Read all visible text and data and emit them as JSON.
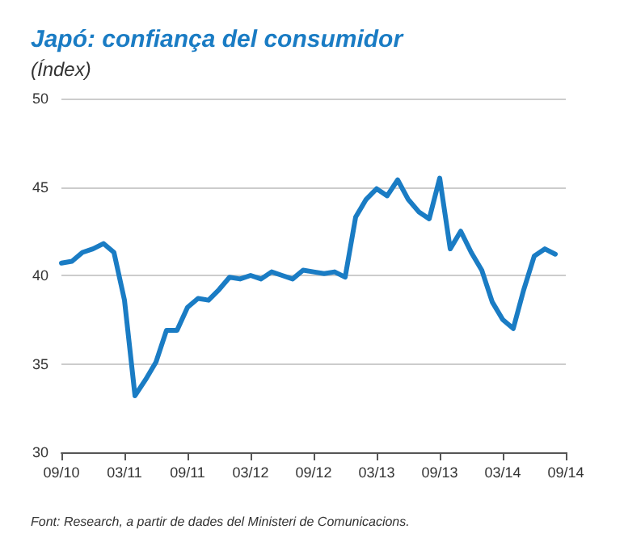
{
  "chart_data": {
    "type": "line",
    "title": "Japó: confiança del consumidor",
    "subtitle": "(Índex)",
    "annotations": [
      "Font: Research, a partir de dades del Ministeri de Comunicacions."
    ],
    "categories": [
      "09/10",
      null,
      null,
      null,
      null,
      null,
      "03/11",
      null,
      null,
      null,
      null,
      null,
      "09/11",
      null,
      null,
      null,
      null,
      null,
      "03/12",
      null,
      null,
      null,
      null,
      null,
      "09/12",
      null,
      null,
      null,
      null,
      null,
      "03/13",
      null,
      null,
      null,
      null,
      null,
      "09/13",
      null,
      null,
      null,
      null,
      null,
      "03/14",
      null,
      null,
      null,
      null,
      null,
      "09/14"
    ],
    "series": [
      {
        "color": "#1a7cc4",
        "values": [
          40.7,
          40.8,
          41.3,
          41.5,
          41.8,
          41.3,
          38.6,
          33.2,
          34.1,
          35.1,
          36.9,
          36.9,
          38.2,
          38.7,
          38.6,
          39.2,
          39.9,
          39.8,
          40.0,
          39.8,
          40.2,
          40.0,
          39.8,
          40.3,
          40.2,
          40.1,
          40.2,
          39.9,
          43.3,
          44.3,
          44.9,
          44.5,
          45.4,
          44.3,
          43.6,
          43.2,
          45.5,
          41.5,
          42.5,
          41.3,
          40.3,
          38.5,
          37.5,
          37.0,
          39.2,
          41.1,
          41.5,
          41.2,
          null
        ]
      }
    ],
    "ylim": [
      30,
      50
    ],
    "yticks": [
      30,
      35,
      40,
      45,
      50
    ],
    "grid": "y",
    "marker": "none",
    "line_style": "solid"
  }
}
